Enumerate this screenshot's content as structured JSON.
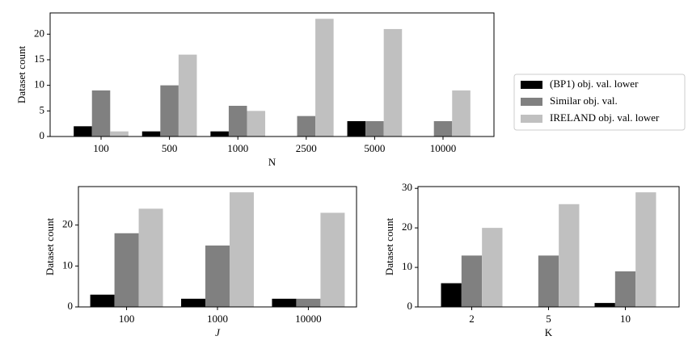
{
  "chart_data": [
    {
      "type": "bar",
      "categories": [
        "100",
        "500",
        "1000",
        "2500",
        "5000",
        "10000"
      ],
      "xlabel": "N",
      "ylabel": "Dataset count",
      "series": [
        {
          "name": "(BP1) obj. val. lower",
          "color": "#000000",
          "values": [
            2,
            1,
            1,
            0,
            3,
            0
          ]
        },
        {
          "name": "Similar obj. val.",
          "color": "#808080",
          "values": [
            9,
            10,
            6,
            4,
            3,
            3
          ]
        },
        {
          "name": "IRELAND obj. val. lower",
          "color": "#c0c0c0",
          "values": [
            1,
            16,
            5,
            23,
            21,
            9
          ]
        }
      ],
      "ylim": [
        0,
        24.15
      ],
      "yticks": [
        0,
        5,
        10,
        15,
        20
      ],
      "legend": "outside right"
    },
    {
      "type": "bar",
      "categories": [
        "100",
        "1000",
        "10000"
      ],
      "xlabel": "J",
      "ylabel": "Dataset count",
      "series": [
        {
          "color": "#000000",
          "values": [
            3,
            2,
            2
          ]
        },
        {
          "color": "#808080",
          "values": [
            18,
            15,
            2
          ]
        },
        {
          "color": "#c0c0c0",
          "values": [
            24,
            28,
            23
          ]
        }
      ],
      "ylim": [
        0,
        29.4
      ],
      "yticks": [
        0,
        10,
        20
      ]
    },
    {
      "type": "bar",
      "categories": [
        "2",
        "5",
        "10"
      ],
      "xlabel": "K",
      "ylabel": "Dataset count",
      "series": [
        {
          "color": "#000000",
          "values": [
            6,
            0,
            1
          ]
        },
        {
          "color": "#808080",
          "values": [
            13,
            13,
            9
          ]
        },
        {
          "color": "#c0c0c0",
          "values": [
            20,
            26,
            29
          ]
        }
      ],
      "ylim": [
        0,
        30.45
      ],
      "yticks": [
        0,
        10,
        20,
        30
      ]
    }
  ]
}
